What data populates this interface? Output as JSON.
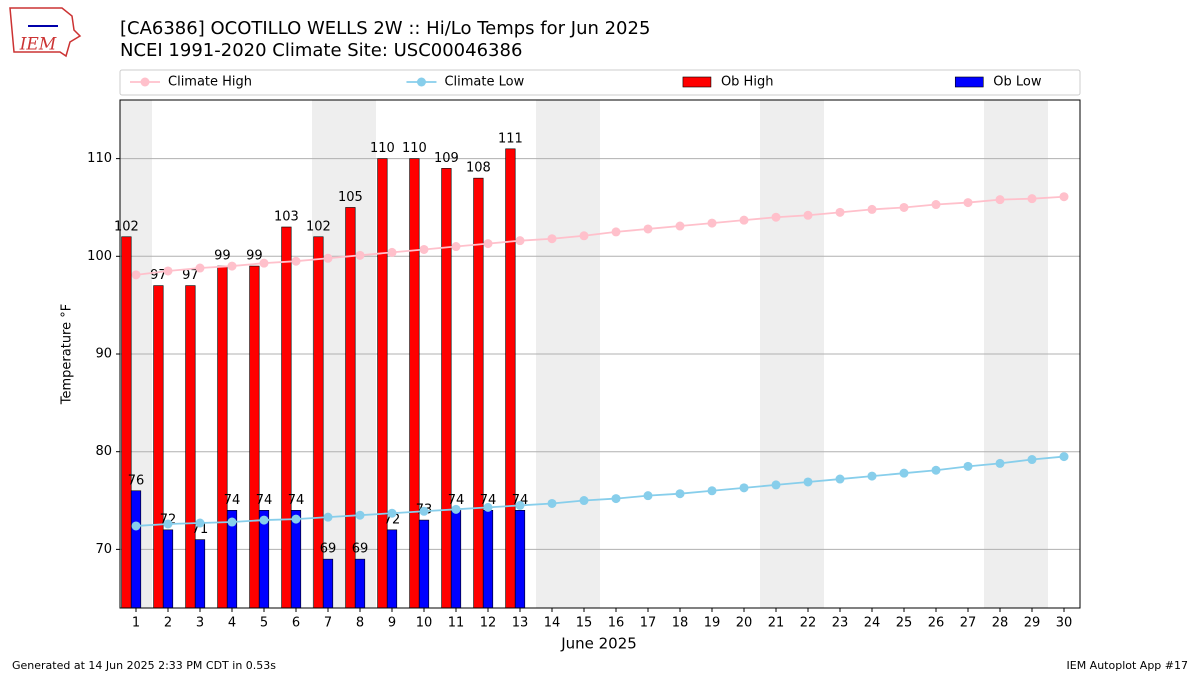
{
  "chart_data": {
    "type": "bar",
    "logo_text": "IEM",
    "title": "[CA6386] OCOTILLO WELLS 2W :: Hi/Lo Temps for Jun 2025",
    "subtitle": "NCEI 1991-2020 Climate Site: USC00046386",
    "x_label": "June 2025",
    "y_label": "Temperature °F",
    "footer_left": "Generated at 14 Jun 2025 2:33 PM CDT in 0.53s",
    "footer_right": "IEM Autoplot App #17",
    "x": [
      1,
      2,
      3,
      4,
      5,
      6,
      7,
      8,
      9,
      10,
      11,
      12,
      13,
      14,
      15,
      16,
      17,
      18,
      19,
      20,
      21,
      22,
      23,
      24,
      25,
      26,
      27,
      28,
      29,
      30
    ],
    "xlim": [
      0.5,
      30.5
    ],
    "xticks": [
      1,
      2,
      3,
      4,
      5,
      6,
      7,
      8,
      9,
      10,
      11,
      12,
      13,
      14,
      15,
      16,
      17,
      18,
      19,
      20,
      21,
      22,
      23,
      24,
      25,
      26,
      27,
      28,
      29,
      30
    ],
    "ylim": [
      64,
      116
    ],
    "yticks": [
      70,
      80,
      90,
      100,
      110
    ],
    "grid": true,
    "shaded_days": [
      1,
      7,
      8,
      14,
      15,
      21,
      22,
      28,
      29
    ],
    "legend": "top",
    "series": [
      {
        "name": "Climate High",
        "type": "line",
        "color": "#ffc0cb",
        "values": [
          98.1,
          98.5,
          98.8,
          99.0,
          99.3,
          99.5,
          99.8,
          100.1,
          100.4,
          100.7,
          101.0,
          101.3,
          101.6,
          101.8,
          102.1,
          102.5,
          102.8,
          103.1,
          103.4,
          103.7,
          104.0,
          104.2,
          104.5,
          104.8,
          105.0,
          105.3,
          105.5,
          105.8,
          105.9,
          106.1
        ]
      },
      {
        "name": "Climate Low",
        "type": "line",
        "color": "#87ceeb",
        "values": [
          72.4,
          72.6,
          72.7,
          72.8,
          73.0,
          73.1,
          73.3,
          73.5,
          73.7,
          73.9,
          74.1,
          74.3,
          74.5,
          74.7,
          75.0,
          75.2,
          75.5,
          75.7,
          76.0,
          76.3,
          76.6,
          76.9,
          77.2,
          77.5,
          77.8,
          78.1,
          78.5,
          78.8,
          79.2,
          79.5
        ]
      },
      {
        "name": "Ob High",
        "type": "bar",
        "color": "#ff0000",
        "values": [
          102,
          97,
          97,
          99,
          99,
          103,
          102,
          105,
          110,
          110,
          109,
          108,
          111,
          null,
          null,
          null,
          null,
          null,
          null,
          null,
          null,
          null,
          null,
          null,
          null,
          null,
          null,
          null,
          null,
          null
        ]
      },
      {
        "name": "Ob Low",
        "type": "bar",
        "color": "#0000ff",
        "values": [
          76,
          72,
          71,
          74,
          74,
          74,
          69,
          69,
          72,
          73,
          74,
          74,
          74,
          null,
          null,
          null,
          null,
          null,
          null,
          null,
          null,
          null,
          null,
          null,
          null,
          null,
          null,
          null,
          null,
          null
        ]
      }
    ]
  }
}
